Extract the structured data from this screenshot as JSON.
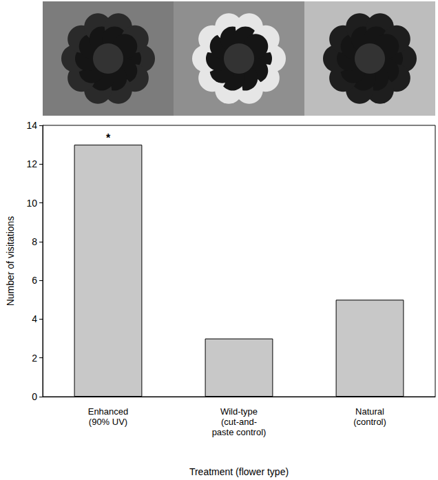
{
  "chart_data": {
    "type": "bar",
    "categories": [
      "Enhanced\n(90% UV)",
      "Wild-type\n(cut-and-\npaste control)",
      "Natural\n(control)"
    ],
    "values": [
      13,
      3,
      5
    ],
    "color": "#c8c8c8",
    "x_label": "Treatment (flower type)",
    "y_label": "Number of visitations",
    "ylim": [
      0,
      14
    ],
    "yticks": [
      0,
      2,
      4,
      6,
      8,
      10,
      12,
      14
    ],
    "grid": false,
    "annotations": [
      {
        "text": "*",
        "category": "Enhanced\n(90% UV)"
      }
    ]
  }
}
